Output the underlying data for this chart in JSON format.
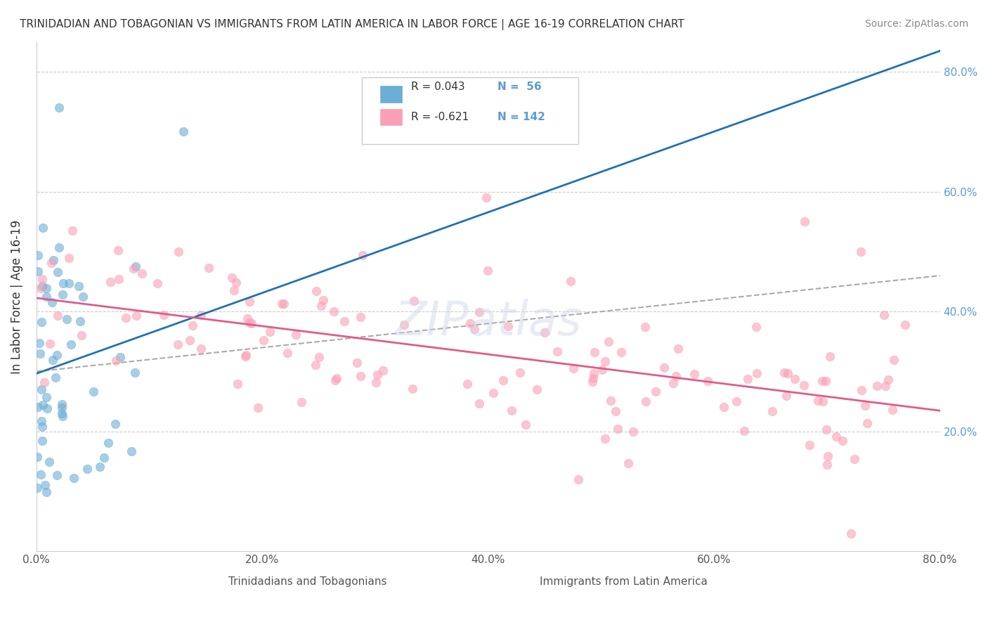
{
  "title": "TRINIDADIAN AND TOBAGONIAN VS IMMIGRANTS FROM LATIN AMERICA IN LABOR FORCE | AGE 16-19 CORRELATION CHART",
  "source": "Source: ZipAtlas.com",
  "xlabel": "",
  "ylabel": "In Labor Force | Age 16-19",
  "xlim": [
    0.0,
    0.8
  ],
  "ylim": [
    0.0,
    0.85
  ],
  "yticks_right": [
    0.2,
    0.4,
    0.6,
    0.8
  ],
  "ytick_labels_right": [
    "20.0%",
    "40.0%",
    "60.0%",
    "80.0%"
  ],
  "xticks": [
    0.0,
    0.2,
    0.4,
    0.6,
    0.8
  ],
  "xtick_labels": [
    "0.0%",
    "20.0%",
    "40.0%",
    "60.0%",
    "80.0%"
  ],
  "legend_r1": "R = 0.043",
  "legend_n1": "N =  56",
  "legend_r2": "R = -0.621",
  "legend_n2": "N = 142",
  "blue_color": "#6baed6",
  "pink_color": "#fa9fb5",
  "blue_line_color": "#2171b5",
  "pink_line_color": "#e05c8a",
  "watermark": "ZIPatlas",
  "blue_R": 0.043,
  "blue_N": 56,
  "pink_R": -0.621,
  "pink_N": 142,
  "background_color": "#ffffff",
  "grid_color": "#cccccc"
}
